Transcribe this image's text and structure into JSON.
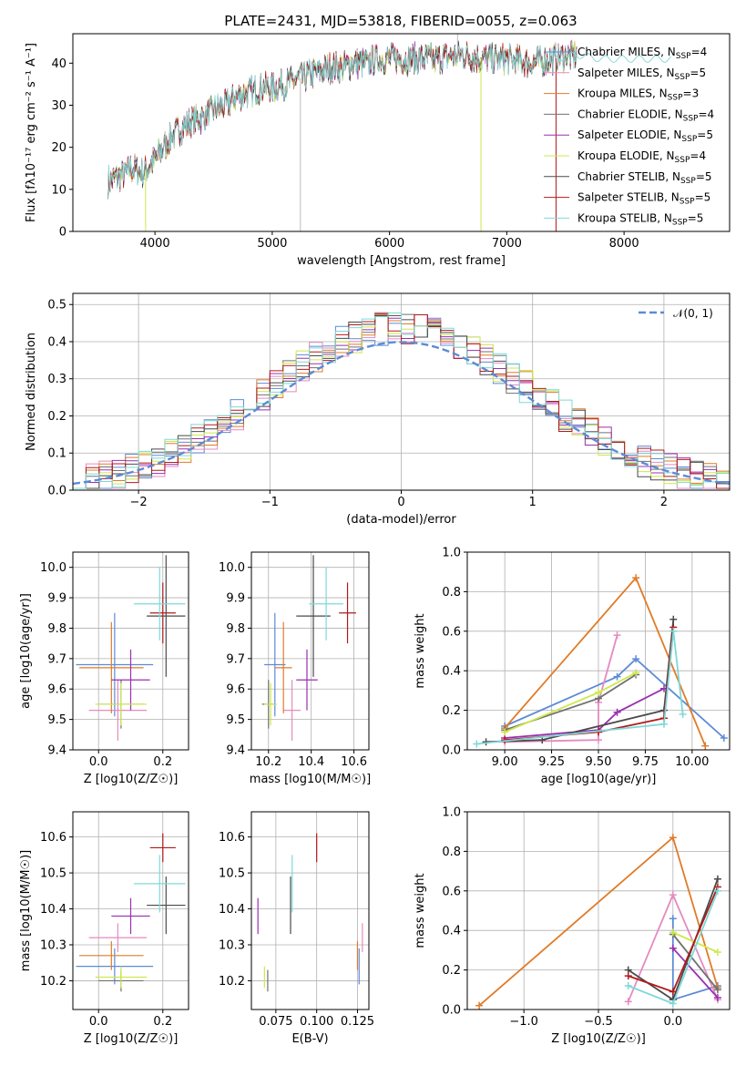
{
  "figure": {
    "title": "PLATE=2431, MJD=53818, FIBERID=0055, z=0.063"
  },
  "chart_data": [
    {
      "id": "spectrum",
      "type": "line",
      "xlabel": "wavelength [Angstrom, rest frame]",
      "ylabel": "Flux [fλ10⁻¹⁷ erg cm⁻² s⁻¹ A⁻¹]",
      "xlim": [
        3300,
        8900
      ],
      "ylim": [
        0,
        47
      ],
      "xticks": [
        4000,
        5000,
        6000,
        7000,
        8000
      ],
      "yticks": [
        0,
        10,
        20,
        30,
        40
      ],
      "grid": false,
      "legend_position": "right",
      "data_continuum": {
        "x": [
          3600,
          3700,
          3800,
          3900,
          4000,
          4100,
          4200,
          4300,
          4400,
          4500,
          4600,
          4700,
          4800,
          4900,
          5000,
          5100,
          5200,
          5300,
          5400,
          5500,
          5600,
          5700,
          5800,
          5900,
          6000,
          6200,
          6400,
          6600,
          6800,
          7000,
          7200,
          7400,
          7600,
          7800,
          8000,
          8200,
          8400
        ],
        "y": [
          12,
          13,
          15,
          14,
          17,
          21,
          24,
          26,
          27,
          29,
          30,
          32,
          33,
          34,
          34,
          35,
          36,
          37,
          38,
          39,
          39,
          40,
          40,
          41,
          41,
          41,
          41,
          42,
          41,
          41,
          40,
          41,
          42,
          41,
          41,
          41,
          41
        ]
      },
      "series": [
        {
          "name": "Chabrier MILES, N_SSP=4",
          "color": "#5c8bd6"
        },
        {
          "name": "Salpeter MILES, N_SSP=5",
          "color": "#e58ac0"
        },
        {
          "name": "Kroupa MILES, N_SSP=3",
          "color": "#e07b27"
        },
        {
          "name": "Chabrier ELODIE, N_SSP=4",
          "color": "#707070"
        },
        {
          "name": "Salpeter ELODIE, N_SSP=5",
          "color": "#9a30b0"
        },
        {
          "name": "Kroupa ELODIE, N_SSP=4",
          "color": "#cde84a"
        },
        {
          "name": "Chabrier STELIB, N_SSP=5",
          "color": "#4a4a4a"
        },
        {
          "name": "Salpeter STELIB, N_SSP=5",
          "color": "#b21a1a"
        },
        {
          "name": "Kroupa STELIB, N_SSP=5",
          "color": "#7fd8d8"
        }
      ]
    },
    {
      "id": "residuals",
      "type": "line",
      "xlabel": "(data-model)/error",
      "ylabel": "Normed distribution",
      "xlim": [
        -2.5,
        2.5
      ],
      "ylim": [
        0,
        0.53
      ],
      "xticks": [
        -2,
        -1,
        0,
        1,
        2
      ],
      "yticks": [
        0.0,
        0.1,
        0.2,
        0.3,
        0.4,
        0.5
      ],
      "grid": true,
      "legend": "𝒩(0, 1)",
      "legend_position": "top-right",
      "bins": {
        "start": -2.5,
        "width": 0.1,
        "count": 50
      }
    },
    {
      "id": "age_vs_Z",
      "type": "scatter",
      "xlabel": "Z [log10(Z/Z☉)]",
      "ylabel": "age [log10(age/yr)]",
      "xlim": [
        -0.08,
        0.28
      ],
      "ylim": [
        9.4,
        10.05
      ],
      "xticks": [
        0.0,
        0.2
      ],
      "yticks": [
        9.4,
        9.5,
        9.6,
        9.7,
        9.8,
        9.9,
        10.0
      ],
      "grid": true,
      "points": [
        {
          "series": "Chabrier MILES",
          "x": 0.05,
          "xerr": 0.12,
          "y": 9.68,
          "yerr": 0.17
        },
        {
          "series": "Salpeter MILES",
          "x": 0.06,
          "xerr": 0.09,
          "y": 9.53,
          "yerr": 0.1
        },
        {
          "series": "Kroupa MILES",
          "x": 0.04,
          "xerr": 0.1,
          "y": 9.67,
          "yerr": 0.15
        },
        {
          "series": "Chabrier ELODIE",
          "x": 0.07,
          "xerr": 0.07,
          "y": 9.55,
          "yerr": 0.08
        },
        {
          "series": "Salpeter ELODIE",
          "x": 0.1,
          "xerr": 0.06,
          "y": 9.63,
          "yerr": 0.1
        },
        {
          "series": "Kroupa ELODIE",
          "x": 0.07,
          "xerr": 0.08,
          "y": 9.55,
          "yerr": 0.07
        },
        {
          "series": "Chabrier STELIB",
          "x": 0.21,
          "xerr": 0.06,
          "y": 9.84,
          "yerr": 0.2
        },
        {
          "series": "Salpeter STELIB",
          "x": 0.2,
          "xerr": 0.04,
          "y": 9.85,
          "yerr": 0.1
        },
        {
          "series": "Kroupa STELIB",
          "x": 0.19,
          "xerr": 0.08,
          "y": 9.88,
          "yerr": 0.12
        }
      ]
    },
    {
      "id": "age_vs_mass",
      "type": "scatter",
      "xlabel": "mass [log10(M/M☉)]",
      "ylabel": "",
      "xlim": [
        10.12,
        10.67
      ],
      "ylim": [
        9.4,
        10.05
      ],
      "xticks": [
        10.2,
        10.4,
        10.6
      ],
      "yticks": [
        9.4,
        9.5,
        9.6,
        9.7,
        9.8,
        9.9,
        10.0
      ],
      "grid": true,
      "points": [
        {
          "series": "Chabrier MILES",
          "x": 10.23,
          "xerr": 0.05,
          "y": 9.68,
          "yerr": 0.17
        },
        {
          "series": "Salpeter MILES",
          "x": 10.31,
          "xerr": 0.04,
          "y": 9.53,
          "yerr": 0.1
        },
        {
          "series": "Kroupa MILES",
          "x": 10.27,
          "xerr": 0.04,
          "y": 9.67,
          "yerr": 0.15
        },
        {
          "series": "Chabrier ELODIE",
          "x": 10.2,
          "xerr": 0.03,
          "y": 9.55,
          "yerr": 0.08
        },
        {
          "series": "Salpeter ELODIE",
          "x": 10.38,
          "xerr": 0.05,
          "y": 9.63,
          "yerr": 0.1
        },
        {
          "series": "Kroupa ELODIE",
          "x": 10.21,
          "xerr": 0.03,
          "y": 9.55,
          "yerr": 0.07
        },
        {
          "series": "Chabrier STELIB",
          "x": 10.41,
          "xerr": 0.08,
          "y": 9.84,
          "yerr": 0.2
        },
        {
          "series": "Salpeter STELIB",
          "x": 10.57,
          "xerr": 0.04,
          "y": 9.85,
          "yerr": 0.1
        },
        {
          "series": "Kroupa STELIB",
          "x": 10.47,
          "xerr": 0.08,
          "y": 9.88,
          "yerr": 0.12
        }
      ]
    },
    {
      "id": "weight_vs_age",
      "type": "line",
      "xlabel": "age [log10(age/yr)]",
      "ylabel": "mass weight",
      "xlim": [
        8.8,
        10.2
      ],
      "ylim": [
        0.0,
        1.0
      ],
      "xticks": [
        9.0,
        9.25,
        9.5,
        9.75,
        10.0
      ],
      "yticks": [
        0.0,
        0.2,
        0.4,
        0.6,
        0.8,
        1.0
      ],
      "grid": true,
      "series": [
        {
          "name": "Chabrier MILES",
          "x": [
            9.0,
            9.6,
            9.7,
            10.17
          ],
          "y": [
            0.12,
            0.37,
            0.46,
            0.06
          ]
        },
        {
          "name": "Salpeter MILES",
          "x": [
            9.0,
            9.5,
            9.5,
            9.6
          ],
          "y": [
            0.04,
            0.05,
            0.24,
            0.58
          ]
        },
        {
          "name": "Kroupa MILES",
          "x": [
            9.0,
            9.7,
            10.07
          ],
          "y": [
            0.11,
            0.87,
            0.02
          ]
        },
        {
          "name": "Chabrier ELODIE",
          "x": [
            9.0,
            9.5,
            9.7
          ],
          "y": [
            0.1,
            0.26,
            0.38
          ]
        },
        {
          "name": "Salpeter ELODIE",
          "x": [
            9.0,
            9.5,
            9.6,
            9.85
          ],
          "y": [
            0.06,
            0.1,
            0.19,
            0.31
          ]
        },
        {
          "name": "Kroupa ELODIE",
          "x": [
            9.0,
            9.5,
            9.7
          ],
          "y": [
            0.09,
            0.29,
            0.39
          ]
        },
        {
          "name": "Chabrier STELIB",
          "x": [
            8.9,
            9.2,
            9.85,
            9.9
          ],
          "y": [
            0.04,
            0.05,
            0.2,
            0.66
          ]
        },
        {
          "name": "Salpeter STELIB",
          "x": [
            9.0,
            9.5,
            9.85,
            9.9
          ],
          "y": [
            0.05,
            0.09,
            0.16,
            0.62
          ]
        },
        {
          "name": "Kroupa STELIB",
          "x": [
            8.85,
            9.85,
            9.9,
            9.95
          ],
          "y": [
            0.03,
            0.13,
            0.6,
            0.18
          ]
        }
      ]
    },
    {
      "id": "mass_vs_Z",
      "type": "scatter",
      "xlabel": "Z [log10(Z/Z☉)]",
      "ylabel": "mass [log10(M/M☉)]",
      "xlim": [
        -0.08,
        0.28
      ],
      "ylim": [
        10.12,
        10.67
      ],
      "xticks": [
        0.0,
        0.2
      ],
      "yticks": [
        10.2,
        10.3,
        10.4,
        10.5,
        10.6
      ],
      "grid": true,
      "points": [
        {
          "series": "Chabrier MILES",
          "x": 0.05,
          "xerr": 0.12,
          "y": 10.24,
          "yerr": 0.05
        },
        {
          "series": "Salpeter MILES",
          "x": 0.06,
          "xerr": 0.09,
          "y": 10.32,
          "yerr": 0.04
        },
        {
          "series": "Kroupa MILES",
          "x": 0.04,
          "xerr": 0.1,
          "y": 10.27,
          "yerr": 0.04
        },
        {
          "series": "Chabrier ELODIE",
          "x": 0.07,
          "xerr": 0.07,
          "y": 10.2,
          "yerr": 0.03
        },
        {
          "series": "Salpeter ELODIE",
          "x": 0.1,
          "xerr": 0.06,
          "y": 10.38,
          "yerr": 0.05
        },
        {
          "series": "Kroupa ELODIE",
          "x": 0.07,
          "xerr": 0.08,
          "y": 10.21,
          "yerr": 0.03
        },
        {
          "series": "Chabrier STELIB",
          "x": 0.21,
          "xerr": 0.06,
          "y": 10.41,
          "yerr": 0.08
        },
        {
          "series": "Salpeter STELIB",
          "x": 0.2,
          "xerr": 0.04,
          "y": 10.57,
          "yerr": 0.04
        },
        {
          "series": "Kroupa STELIB",
          "x": 0.19,
          "xerr": 0.08,
          "y": 10.47,
          "yerr": 0.08
        }
      ]
    },
    {
      "id": "mass_vs_EBV",
      "type": "scatter",
      "xlabel": "E(B-V)",
      "ylabel": "",
      "xlim": [
        0.06,
        0.132
      ],
      "ylim": [
        10.12,
        10.67
      ],
      "xticks": [
        0.075,
        0.1,
        0.125
      ],
      "yticks": [
        10.2,
        10.3,
        10.4,
        10.5,
        10.6
      ],
      "grid": true,
      "points": [
        {
          "series": "Chabrier MILES",
          "x": 0.126,
          "y": 10.24,
          "yerr": 0.05
        },
        {
          "series": "Salpeter MILES",
          "x": 0.128,
          "y": 10.32,
          "yerr": 0.04
        },
        {
          "series": "Kroupa MILES",
          "x": 0.125,
          "y": 10.27,
          "yerr": 0.04
        },
        {
          "series": "Chabrier ELODIE",
          "x": 0.07,
          "y": 10.2,
          "yerr": 0.03
        },
        {
          "series": "Salpeter ELODIE",
          "x": 0.064,
          "y": 10.38,
          "yerr": 0.05
        },
        {
          "series": "Kroupa ELODIE",
          "x": 0.068,
          "y": 10.21,
          "yerr": 0.03
        },
        {
          "series": "Chabrier STELIB",
          "x": 0.084,
          "y": 10.41,
          "yerr": 0.08
        },
        {
          "series": "Salpeter STELIB",
          "x": 0.1,
          "y": 10.57,
          "yerr": 0.04
        },
        {
          "series": "Kroupa STELIB",
          "x": 0.085,
          "y": 10.47,
          "yerr": 0.08
        }
      ]
    },
    {
      "id": "weight_vs_Z",
      "type": "line",
      "xlabel": "Z [log10(Z/Z☉)]",
      "ylabel": "mass weight",
      "xlim": [
        -1.38,
        0.38
      ],
      "ylim": [
        0.0,
        1.0
      ],
      "xticks": [
        -1.0,
        -0.5,
        0.0
      ],
      "yticks": [
        0.0,
        0.2,
        0.4,
        0.6,
        0.8,
        1.0
      ],
      "grid": true,
      "series": [
        {
          "name": "Chabrier MILES",
          "x": [
            0.0,
            0.0,
            0.3
          ],
          "y": [
            0.46,
            0.05,
            0.12
          ]
        },
        {
          "name": "Salpeter MILES",
          "x": [
            -0.3,
            0.0,
            0.3
          ],
          "y": [
            0.04,
            0.58,
            0.05
          ]
        },
        {
          "name": "Kroupa MILES",
          "x": [
            -1.3,
            0.0,
            0.3
          ],
          "y": [
            0.02,
            0.87,
            0.11
          ]
        },
        {
          "name": "Chabrier ELODIE",
          "x": [
            0.0,
            0.3
          ],
          "y": [
            0.38,
            0.1
          ]
        },
        {
          "name": "Salpeter ELODIE",
          "x": [
            0.0,
            0.3
          ],
          "y": [
            0.31,
            0.06
          ]
        },
        {
          "name": "Kroupa ELODIE",
          "x": [
            0.0,
            0.3
          ],
          "y": [
            0.39,
            0.29
          ]
        },
        {
          "name": "Chabrier STELIB",
          "x": [
            -0.3,
            0.0,
            0.3
          ],
          "y": [
            0.2,
            0.05,
            0.66
          ]
        },
        {
          "name": "Salpeter STELIB",
          "x": [
            -0.3,
            0.0,
            0.3
          ],
          "y": [
            0.17,
            0.09,
            0.62
          ]
        },
        {
          "name": "Kroupa STELIB",
          "x": [
            -0.3,
            0.0,
            0.3
          ],
          "y": [
            0.12,
            0.03,
            0.6
          ]
        }
      ]
    }
  ]
}
